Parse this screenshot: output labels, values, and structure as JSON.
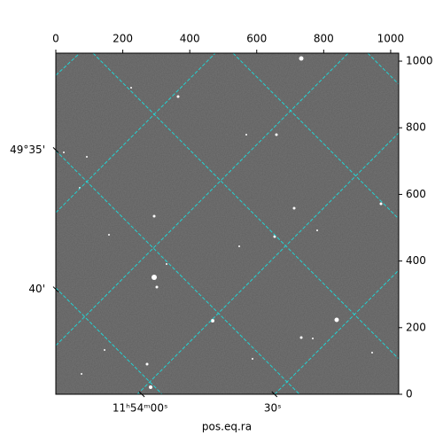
{
  "chart_data": {
    "type": "image",
    "xlabel": "pos.eq.ra",
    "xlim": [
      0,
      1024
    ],
    "ylim": [
      0,
      1024
    ],
    "xticks": [
      0,
      200,
      400,
      600,
      800,
      1000
    ],
    "yticks": [
      0,
      200,
      400,
      600,
      800,
      1000
    ],
    "ra_ticks": [
      {
        "value": 257,
        "label": "11ʰ54ᵐ00ˢ"
      },
      {
        "value": 653,
        "label": "30ˢ"
      }
    ],
    "dec_ticks": [
      {
        "value": 733,
        "label": "49°35'"
      },
      {
        "value": 315,
        "label": "40'"
      }
    ]
  }
}
